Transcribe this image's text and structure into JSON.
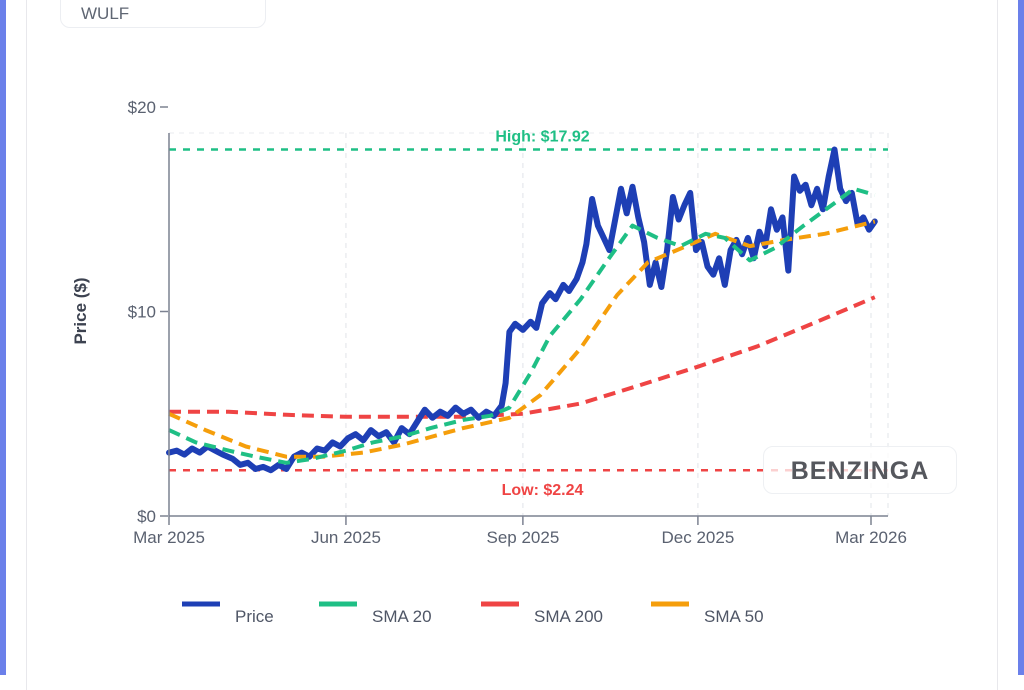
{
  "ticker": "WULF",
  "watermark": "BENZINGA",
  "colors": {
    "price": "#1e3fb5",
    "sma20": "#1fbf85",
    "sma200": "#ef4444",
    "sma50": "#f59e0b",
    "accent": "#6b80ea"
  },
  "chart_data": {
    "type": "line",
    "title": "",
    "xlabel": "",
    "ylabel": "Price ($)",
    "ylim": [
      0,
      20
    ],
    "yticks": [
      0,
      10,
      20
    ],
    "ytick_labels": [
      "$0",
      "$10",
      "$20"
    ],
    "xlim": [
      "2025-03-01",
      "2026-03-10"
    ],
    "xticks": [
      "2025-03-01",
      "2025-06-01",
      "2025-09-01",
      "2025-12-01",
      "2026-03-01"
    ],
    "xtick_labels": [
      "Mar 2025",
      "Jun 2025",
      "Sep 2025",
      "Dec 2025",
      "Mar 2026"
    ],
    "grid": "x-dashed",
    "legend": {
      "position": "bottom",
      "items": [
        "Price",
        "SMA 20",
        "SMA 200",
        "SMA 50"
      ]
    },
    "annotations": [
      {
        "label": "High: $17.92",
        "value": 17.92,
        "style": "dashed",
        "color": "#1fbf85"
      },
      {
        "label": "Low: $2.24",
        "value": 2.24,
        "style": "dashed",
        "color": "#ef4444"
      }
    ],
    "series": [
      {
        "name": "Price",
        "style": "solid",
        "points": [
          [
            "2025-03-01",
            3.1
          ],
          [
            "2025-03-05",
            3.2
          ],
          [
            "2025-03-09",
            3.0
          ],
          [
            "2025-03-13",
            3.3
          ],
          [
            "2025-03-17",
            3.1
          ],
          [
            "2025-03-21",
            3.4
          ],
          [
            "2025-03-25",
            3.2
          ],
          [
            "2025-03-29",
            3.0
          ],
          [
            "2025-04-03",
            2.8
          ],
          [
            "2025-04-07",
            2.5
          ],
          [
            "2025-04-11",
            2.6
          ],
          [
            "2025-04-15",
            2.3
          ],
          [
            "2025-04-19",
            2.4
          ],
          [
            "2025-04-23",
            2.24
          ],
          [
            "2025-04-27",
            2.5
          ],
          [
            "2025-05-01",
            2.3
          ],
          [
            "2025-05-05",
            2.9
          ],
          [
            "2025-05-09",
            3.1
          ],
          [
            "2025-05-13",
            2.9
          ],
          [
            "2025-05-17",
            3.3
          ],
          [
            "2025-05-21",
            3.2
          ],
          [
            "2025-05-25",
            3.6
          ],
          [
            "2025-05-29",
            3.4
          ],
          [
            "2025-06-02",
            3.8
          ],
          [
            "2025-06-06",
            4.0
          ],
          [
            "2025-06-10",
            3.7
          ],
          [
            "2025-06-14",
            4.2
          ],
          [
            "2025-06-18",
            3.9
          ],
          [
            "2025-06-22",
            4.1
          ],
          [
            "2025-06-26",
            3.6
          ],
          [
            "2025-06-30",
            4.3
          ],
          [
            "2025-07-04",
            4.0
          ],
          [
            "2025-07-08",
            4.6
          ],
          [
            "2025-07-12",
            5.2
          ],
          [
            "2025-07-16",
            4.8
          ],
          [
            "2025-07-20",
            5.1
          ],
          [
            "2025-07-24",
            4.9
          ],
          [
            "2025-07-28",
            5.3
          ],
          [
            "2025-08-01",
            5.0
          ],
          [
            "2025-08-05",
            5.2
          ],
          [
            "2025-08-09",
            4.8
          ],
          [
            "2025-08-13",
            5.1
          ],
          [
            "2025-08-17",
            4.9
          ],
          [
            "2025-08-21",
            5.4
          ],
          [
            "2025-08-23",
            6.5
          ],
          [
            "2025-08-25",
            9.0
          ],
          [
            "2025-08-28",
            9.4
          ],
          [
            "2025-09-01",
            9.1
          ],
          [
            "2025-09-05",
            9.5
          ],
          [
            "2025-09-08",
            9.2
          ],
          [
            "2025-09-11",
            10.4
          ],
          [
            "2025-09-15",
            10.9
          ],
          [
            "2025-09-18",
            10.6
          ],
          [
            "2025-09-22",
            11.3
          ],
          [
            "2025-09-25",
            11.0
          ],
          [
            "2025-09-29",
            11.6
          ],
          [
            "2025-10-02",
            12.4
          ],
          [
            "2025-10-04",
            13.3
          ],
          [
            "2025-10-07",
            15.5
          ],
          [
            "2025-10-10",
            14.2
          ],
          [
            "2025-10-13",
            13.6
          ],
          [
            "2025-10-16",
            13.0
          ],
          [
            "2025-10-19",
            14.5
          ],
          [
            "2025-10-22",
            16.0
          ],
          [
            "2025-10-25",
            14.8
          ],
          [
            "2025-10-28",
            16.1
          ],
          [
            "2025-10-31",
            14.6
          ],
          [
            "2025-11-03",
            13.4
          ],
          [
            "2025-11-06",
            11.3
          ],
          [
            "2025-11-09",
            12.4
          ],
          [
            "2025-11-12",
            11.2
          ],
          [
            "2025-11-15",
            13.0
          ],
          [
            "2025-11-18",
            15.6
          ],
          [
            "2025-11-21",
            14.5
          ],
          [
            "2025-11-24",
            15.2
          ],
          [
            "2025-11-27",
            15.8
          ],
          [
            "2025-11-30",
            13.0
          ],
          [
            "2025-12-03",
            13.4
          ],
          [
            "2025-12-06",
            12.2
          ],
          [
            "2025-12-09",
            11.8
          ],
          [
            "2025-12-12",
            12.6
          ],
          [
            "2025-12-15",
            11.3
          ],
          [
            "2025-12-18",
            13.0
          ],
          [
            "2025-12-21",
            13.5
          ],
          [
            "2025-12-24",
            12.8
          ],
          [
            "2025-12-27",
            13.6
          ],
          [
            "2025-12-30",
            12.6
          ],
          [
            "2026-01-02",
            13.9
          ],
          [
            "2026-01-05",
            13.2
          ],
          [
            "2026-01-08",
            15.0
          ],
          [
            "2026-01-11",
            14.0
          ],
          [
            "2026-01-14",
            14.6
          ],
          [
            "2026-01-17",
            12.0
          ],
          [
            "2026-01-20",
            16.6
          ],
          [
            "2026-01-23",
            15.9
          ],
          [
            "2026-01-26",
            16.2
          ],
          [
            "2026-01-29",
            15.2
          ],
          [
            "2026-02-01",
            16.0
          ],
          [
            "2026-02-04",
            15.0
          ],
          [
            "2026-02-07",
            16.6
          ],
          [
            "2026-02-10",
            17.92
          ],
          [
            "2026-02-13",
            16.0
          ],
          [
            "2026-02-16",
            15.4
          ],
          [
            "2026-02-19",
            15.8
          ],
          [
            "2026-02-22",
            14.3
          ],
          [
            "2026-02-25",
            14.6
          ],
          [
            "2026-02-28",
            14.0
          ],
          [
            "2026-03-03",
            14.4
          ]
        ]
      },
      {
        "name": "SMA 20",
        "style": "dashed",
        "points": [
          [
            "2025-03-01",
            4.2
          ],
          [
            "2025-03-15",
            3.6
          ],
          [
            "2025-04-01",
            3.2
          ],
          [
            "2025-04-15",
            2.9
          ],
          [
            "2025-05-01",
            2.6
          ],
          [
            "2025-05-15",
            2.8
          ],
          [
            "2025-06-01",
            3.2
          ],
          [
            "2025-06-15",
            3.6
          ],
          [
            "2025-07-01",
            3.9
          ],
          [
            "2025-07-15",
            4.3
          ],
          [
            "2025-08-01",
            4.7
          ],
          [
            "2025-08-15",
            4.9
          ],
          [
            "2025-08-25",
            5.3
          ],
          [
            "2025-09-05",
            7.0
          ],
          [
            "2025-09-15",
            8.8
          ],
          [
            "2025-10-01",
            10.6
          ],
          [
            "2025-10-15",
            12.5
          ],
          [
            "2025-10-28",
            14.2
          ],
          [
            "2025-11-10",
            13.6
          ],
          [
            "2025-11-22",
            13.2
          ],
          [
            "2025-12-05",
            13.8
          ],
          [
            "2025-12-15",
            13.6
          ],
          [
            "2025-12-28",
            12.5
          ],
          [
            "2026-01-10",
            13.1
          ],
          [
            "2026-01-25",
            14.2
          ],
          [
            "2026-02-10",
            15.3
          ],
          [
            "2026-02-20",
            16.0
          ],
          [
            "2026-03-03",
            15.7
          ]
        ]
      },
      {
        "name": "SMA 200",
        "style": "dashed",
        "points": [
          [
            "2025-03-01",
            5.1
          ],
          [
            "2025-04-01",
            5.1
          ],
          [
            "2025-05-01",
            4.95
          ],
          [
            "2025-06-01",
            4.85
          ],
          [
            "2025-07-01",
            4.85
          ],
          [
            "2025-08-01",
            4.85
          ],
          [
            "2025-09-01",
            5.0
          ],
          [
            "2025-10-01",
            5.5
          ],
          [
            "2025-11-01",
            6.4
          ],
          [
            "2025-12-01",
            7.3
          ],
          [
            "2026-01-01",
            8.3
          ],
          [
            "2026-02-01",
            9.5
          ],
          [
            "2026-03-03",
            10.7
          ]
        ]
      },
      {
        "name": "SMA 50",
        "style": "dashed",
        "points": [
          [
            "2025-03-01",
            5.0
          ],
          [
            "2025-03-20",
            4.2
          ],
          [
            "2025-04-10",
            3.4
          ],
          [
            "2025-05-01",
            2.9
          ],
          [
            "2025-05-20",
            2.9
          ],
          [
            "2025-06-10",
            3.1
          ],
          [
            "2025-07-01",
            3.5
          ],
          [
            "2025-08-01",
            4.3
          ],
          [
            "2025-08-25",
            4.8
          ],
          [
            "2025-09-10",
            5.9
          ],
          [
            "2025-10-01",
            8.2
          ],
          [
            "2025-10-20",
            10.8
          ],
          [
            "2025-11-05",
            12.4
          ],
          [
            "2025-11-25",
            13.2
          ],
          [
            "2025-12-10",
            13.8
          ],
          [
            "2025-12-28",
            13.2
          ],
          [
            "2026-01-15",
            13.5
          ],
          [
            "2026-02-05",
            13.8
          ],
          [
            "2026-03-03",
            14.4
          ]
        ]
      }
    ]
  }
}
